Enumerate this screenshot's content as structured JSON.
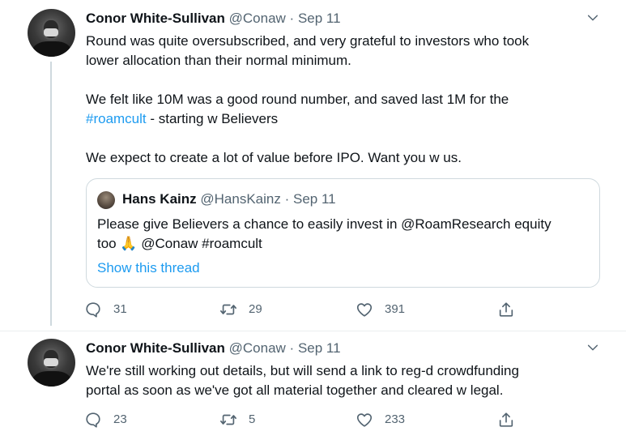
{
  "tweets": [
    {
      "author_name": "Conor White-Sullivan",
      "handle": "@Conaw",
      "separator": "·",
      "date": "Sep 11",
      "text_lines": [
        "Round was quite oversubscribed, and very grateful to investors who took",
        "lower allocation than their normal minimum.",
        "",
        "We felt like 10M was a good round number, and saved last 1M for the",
        "",
        "",
        "We expect to create a lot of value before IPO. Want you w us."
      ],
      "hashtag": "#roamcult",
      "hashtag_suffix": " - starting w Believers",
      "quote": {
        "author_name": "Hans Kainz",
        "handle": "@HansKainz",
        "separator": "·",
        "date": "Sep 11",
        "line1": "Please give Believers a chance to easily invest in @RoamResearch equity",
        "line2": "too 🙏 @Conaw #roamcult",
        "show_thread": "Show this thread"
      },
      "replies": "31",
      "retweets": "29",
      "likes": "391"
    },
    {
      "author_name": "Conor White-Sullivan",
      "handle": "@Conaw",
      "separator": "·",
      "date": "Sep 11",
      "text_lines": [
        "We're still working out details, but will send a link to reg-d crowdfunding",
        "portal as soon as we've got all material together and cleared w legal."
      ],
      "replies": "23",
      "retweets": "5",
      "likes": "233"
    }
  ],
  "icons": {
    "more": "chevron-down-icon",
    "reply": "reply-icon",
    "retweet": "retweet-icon",
    "like": "heart-icon",
    "share": "share-icon"
  },
  "colors": {
    "link": "#1d9bf0",
    "muted": "#536471",
    "text": "#0f1419",
    "border": "#cfd9de"
  }
}
